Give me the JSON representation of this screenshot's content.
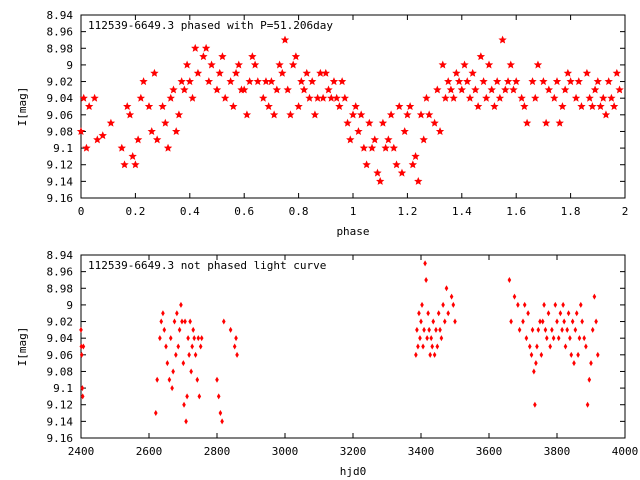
{
  "chart_data": [
    {
      "type": "scatter",
      "title": "112539-6649.3 phased with P=51.206day",
      "xlabel": "phase",
      "ylabel": "I[mag]",
      "xlim": [
        0,
        2
      ],
      "ylim": [
        9.16,
        8.94
      ],
      "y_inverted": true,
      "x_ticks": [
        "0",
        "0.2",
        "0.4",
        "0.6",
        "0.8",
        "1",
        "1.2",
        "1.4",
        "1.6",
        "1.8",
        "2"
      ],
      "y_ticks": [
        "8.94",
        "8.96",
        "8.98",
        "9",
        "9.02",
        "9.04",
        "9.06",
        "9.08",
        "9.1",
        "9.12",
        "9.14",
        "9.16"
      ],
      "marker": "star",
      "color": "#ff0000",
      "points": [
        [
          0.0,
          9.08
        ],
        [
          0.01,
          9.04
        ],
        [
          0.02,
          9.1
        ],
        [
          0.03,
          9.05
        ],
        [
          0.05,
          9.04
        ],
        [
          0.06,
          9.09
        ],
        [
          0.08,
          9.085
        ],
        [
          0.11,
          9.07
        ],
        [
          0.15,
          9.1
        ],
        [
          0.16,
          9.12
        ],
        [
          0.17,
          9.05
        ],
        [
          0.18,
          9.06
        ],
        [
          0.19,
          9.11
        ],
        [
          0.2,
          9.12
        ],
        [
          0.21,
          9.09
        ],
        [
          0.22,
          9.04
        ],
        [
          0.23,
          9.02
        ],
        [
          0.25,
          9.05
        ],
        [
          0.26,
          9.08
        ],
        [
          0.27,
          9.01
        ],
        [
          0.28,
          9.09
        ],
        [
          0.3,
          9.05
        ],
        [
          0.31,
          9.07
        ],
        [
          0.32,
          9.1
        ],
        [
          0.33,
          9.04
        ],
        [
          0.34,
          9.03
        ],
        [
          0.35,
          9.08
        ],
        [
          0.36,
          9.06
        ],
        [
          0.37,
          9.02
        ],
        [
          0.38,
          9.03
        ],
        [
          0.39,
          9.0
        ],
        [
          0.4,
          9.02
        ],
        [
          0.41,
          9.04
        ],
        [
          0.42,
          8.98
        ],
        [
          0.43,
          9.01
        ],
        [
          0.45,
          8.99
        ],
        [
          0.46,
          8.98
        ],
        [
          0.47,
          9.02
        ],
        [
          0.48,
          9.0
        ],
        [
          0.5,
          9.03
        ],
        [
          0.51,
          9.01
        ],
        [
          0.52,
          8.99
        ],
        [
          0.53,
          9.04
        ],
        [
          0.55,
          9.02
        ],
        [
          0.56,
          9.05
        ],
        [
          0.57,
          9.01
        ],
        [
          0.58,
          9.0
        ],
        [
          0.59,
          9.03
        ],
        [
          0.6,
          9.03
        ],
        [
          0.61,
          9.06
        ],
        [
          0.62,
          9.02
        ],
        [
          0.63,
          8.99
        ],
        [
          0.64,
          9.0
        ],
        [
          0.65,
          9.02
        ],
        [
          0.67,
          9.04
        ],
        [
          0.68,
          9.02
        ],
        [
          0.69,
          9.05
        ],
        [
          0.7,
          9.02
        ],
        [
          0.71,
          9.06
        ],
        [
          0.72,
          9.03
        ],
        [
          0.73,
          9.0
        ],
        [
          0.74,
          9.01
        ],
        [
          0.75,
          8.97
        ],
        [
          0.76,
          9.03
        ],
        [
          0.77,
          9.06
        ],
        [
          0.78,
          9.0
        ],
        [
          0.79,
          8.99
        ],
        [
          0.8,
          9.05
        ],
        [
          0.81,
          9.02
        ],
        [
          0.82,
          9.03
        ],
        [
          0.83,
          9.01
        ],
        [
          0.84,
          9.04
        ],
        [
          0.85,
          9.02
        ],
        [
          0.86,
          9.06
        ],
        [
          0.87,
          9.04
        ],
        [
          0.88,
          9.01
        ],
        [
          0.89,
          9.04
        ],
        [
          0.9,
          9.01
        ],
        [
          0.91,
          9.03
        ],
        [
          0.92,
          9.04
        ],
        [
          0.93,
          9.02
        ],
        [
          0.94,
          9.04
        ],
        [
          0.95,
          9.05
        ],
        [
          0.96,
          9.02
        ],
        [
          0.97,
          9.04
        ],
        [
          0.98,
          9.07
        ],
        [
          0.99,
          9.09
        ],
        [
          1.0,
          9.06
        ],
        [
          1.01,
          9.05
        ],
        [
          1.02,
          9.08
        ],
        [
          1.03,
          9.06
        ],
        [
          1.04,
          9.1
        ],
        [
          1.05,
          9.12
        ],
        [
          1.06,
          9.07
        ],
        [
          1.07,
          9.1
        ],
        [
          1.08,
          9.09
        ],
        [
          1.09,
          9.13
        ],
        [
          1.1,
          9.14
        ],
        [
          1.11,
          9.07
        ],
        [
          1.12,
          9.1
        ],
        [
          1.13,
          9.09
        ],
        [
          1.14,
          9.06
        ],
        [
          1.15,
          9.1
        ],
        [
          1.16,
          9.12
        ],
        [
          1.17,
          9.05
        ],
        [
          1.18,
          9.13
        ],
        [
          1.19,
          9.08
        ],
        [
          1.2,
          9.06
        ],
        [
          1.21,
          9.05
        ],
        [
          1.22,
          9.12
        ],
        [
          1.23,
          9.11
        ],
        [
          1.24,
          9.14
        ],
        [
          1.25,
          9.06
        ],
        [
          1.26,
          9.09
        ],
        [
          1.27,
          9.04
        ],
        [
          1.28,
          9.06
        ],
        [
          1.3,
          9.07
        ],
        [
          1.31,
          9.03
        ],
        [
          1.32,
          9.08
        ],
        [
          1.33,
          9.0
        ],
        [
          1.34,
          9.04
        ],
        [
          1.35,
          9.02
        ],
        [
          1.36,
          9.03
        ],
        [
          1.37,
          9.04
        ],
        [
          1.38,
          9.01
        ],
        [
          1.39,
          9.02
        ],
        [
          1.4,
          9.03
        ],
        [
          1.41,
          9.0
        ],
        [
          1.42,
          9.02
        ],
        [
          1.43,
          9.04
        ],
        [
          1.44,
          9.01
        ],
        [
          1.45,
          9.03
        ],
        [
          1.46,
          9.05
        ],
        [
          1.47,
          8.99
        ],
        [
          1.48,
          9.02
        ],
        [
          1.49,
          9.04
        ],
        [
          1.5,
          9.0
        ],
        [
          1.51,
          9.03
        ],
        [
          1.52,
          9.05
        ],
        [
          1.53,
          9.02
        ],
        [
          1.54,
          9.04
        ],
        [
          1.55,
          8.97
        ],
        [
          1.56,
          9.03
        ],
        [
          1.57,
          9.02
        ],
        [
          1.58,
          9.0
        ],
        [
          1.59,
          9.03
        ],
        [
          1.6,
          9.02
        ],
        [
          1.62,
          9.04
        ],
        [
          1.63,
          9.05
        ],
        [
          1.64,
          9.07
        ],
        [
          1.66,
          9.02
        ],
        [
          1.67,
          9.04
        ],
        [
          1.68,
          9.0
        ],
        [
          1.7,
          9.02
        ],
        [
          1.71,
          9.07
        ],
        [
          1.72,
          9.03
        ],
        [
          1.74,
          9.04
        ],
        [
          1.75,
          9.02
        ],
        [
          1.76,
          9.07
        ],
        [
          1.77,
          9.05
        ],
        [
          1.78,
          9.03
        ],
        [
          1.79,
          9.01
        ],
        [
          1.8,
          9.02
        ],
        [
          1.82,
          9.04
        ],
        [
          1.83,
          9.02
        ],
        [
          1.84,
          9.05
        ],
        [
          1.86,
          9.01
        ],
        [
          1.87,
          9.04
        ],
        [
          1.88,
          9.05
        ],
        [
          1.89,
          9.03
        ],
        [
          1.9,
          9.02
        ],
        [
          1.91,
          9.05
        ],
        [
          1.92,
          9.04
        ],
        [
          1.93,
          9.06
        ],
        [
          1.94,
          9.02
        ],
        [
          1.95,
          9.04
        ],
        [
          1.96,
          9.05
        ],
        [
          1.97,
          9.01
        ],
        [
          1.98,
          9.03
        ]
      ]
    },
    {
      "type": "scatter",
      "title": "112539-6649.3 not phased light curve",
      "xlabel": "hjd0",
      "ylabel": "I[mag]",
      "xlim": [
        2400,
        4000
      ],
      "ylim": [
        9.16,
        8.94
      ],
      "y_inverted": true,
      "x_ticks": [
        "2400",
        "2600",
        "2800",
        "3000",
        "3200",
        "3400",
        "3600",
        "3800",
        "4000"
      ],
      "y_ticks": [
        "8.94",
        "8.96",
        "8.98",
        "9",
        "9.02",
        "9.04",
        "9.06",
        "9.08",
        "9.1",
        "9.12",
        "9.14",
        "9.16"
      ],
      "marker": "diamond",
      "color": "#ff0000",
      "points": [
        [
          2400,
          9.03
        ],
        [
          2401,
          9.05
        ],
        [
          2402,
          9.06
        ],
        [
          2404,
          9.1
        ],
        [
          2405,
          9.11
        ],
        [
          2407,
          9.05
        ],
        [
          2620,
          9.13
        ],
        [
          2624,
          9.09
        ],
        [
          2632,
          9.04
        ],
        [
          2636,
          9.02
        ],
        [
          2641,
          9.01
        ],
        [
          2645,
          9.03
        ],
        [
          2650,
          9.05
        ],
        [
          2654,
          9.07
        ],
        [
          2660,
          9.09
        ],
        [
          2664,
          9.04
        ],
        [
          2668,
          9.1
        ],
        [
          2671,
          9.08
        ],
        [
          2675,
          9.02
        ],
        [
          2679,
          9.06
        ],
        [
          2682,
          9.01
        ],
        [
          2686,
          9.05
        ],
        [
          2690,
          9.03
        ],
        [
          2694,
          9.0
        ],
        [
          2697,
          9.02
        ],
        [
          2701,
          9.07
        ],
        [
          2703,
          9.12
        ],
        [
          2706,
          9.02
        ],
        [
          2709,
          9.14
        ],
        [
          2712,
          9.11
        ],
        [
          2715,
          9.04
        ],
        [
          2718,
          9.06
        ],
        [
          2721,
          9.02
        ],
        [
          2724,
          9.08
        ],
        [
          2727,
          9.05
        ],
        [
          2730,
          9.03
        ],
        [
          2733,
          9.04
        ],
        [
          2737,
          9.06
        ],
        [
          2742,
          9.09
        ],
        [
          2745,
          9.04
        ],
        [
          2748,
          9.11
        ],
        [
          2752,
          9.05
        ],
        [
          2755,
          9.04
        ],
        [
          2800,
          9.09
        ],
        [
          2805,
          9.11
        ],
        [
          2810,
          9.13
        ],
        [
          2815,
          9.14
        ],
        [
          2820,
          9.02
        ],
        [
          2840,
          9.03
        ],
        [
          2852,
          9.05
        ],
        [
          2856,
          9.04
        ],
        [
          2859,
          9.06
        ],
        [
          3385,
          9.06
        ],
        [
          3388,
          9.03
        ],
        [
          3391,
          9.05
        ],
        [
          3394,
          9.01
        ],
        [
          3397,
          9.04
        ],
        [
          3400,
          9.02
        ],
        [
          3403,
          9.0
        ],
        [
          3406,
          9.05
        ],
        [
          3409,
          9.03
        ],
        [
          3412,
          8.95
        ],
        [
          3415,
          8.97
        ],
        [
          3418,
          9.04
        ],
        [
          3421,
          9.01
        ],
        [
          3424,
          9.03
        ],
        [
          3427,
          9.06
        ],
        [
          3430,
          9.04
        ],
        [
          3433,
          9.05
        ],
        [
          3436,
          9.02
        ],
        [
          3440,
          9.06
        ],
        [
          3444,
          9.03
        ],
        [
          3448,
          9.05
        ],
        [
          3452,
          9.01
        ],
        [
          3456,
          9.03
        ],
        [
          3460,
          9.04
        ],
        [
          3465,
          9.0
        ],
        [
          3470,
          9.02
        ],
        [
          3475,
          8.98
        ],
        [
          3480,
          9.01
        ],
        [
          3490,
          8.99
        ],
        [
          3495,
          9.0
        ],
        [
          3500,
          9.02
        ],
        [
          3660,
          8.97
        ],
        [
          3665,
          9.02
        ],
        [
          3675,
          8.99
        ],
        [
          3685,
          9.0
        ],
        [
          3690,
          9.03
        ],
        [
          3700,
          9.02
        ],
        [
          3705,
          9.0
        ],
        [
          3710,
          9.04
        ],
        [
          3715,
          9.01
        ],
        [
          3720,
          9.05
        ],
        [
          3725,
          9.06
        ],
        [
          3728,
          9.03
        ],
        [
          3732,
          9.08
        ],
        [
          3735,
          9.12
        ],
        [
          3738,
          9.07
        ],
        [
          3741,
          9.05
        ],
        [
          3745,
          9.03
        ],
        [
          3750,
          9.02
        ],
        [
          3754,
          9.06
        ],
        [
          3758,
          9.02
        ],
        [
          3762,
          9.0
        ],
        [
          3766,
          9.03
        ],
        [
          3770,
          9.04
        ],
        [
          3775,
          9.01
        ],
        [
          3780,
          9.05
        ],
        [
          3785,
          9.03
        ],
        [
          3790,
          9.04
        ],
        [
          3795,
          9.0
        ],
        [
          3800,
          9.02
        ],
        [
          3805,
          9.04
        ],
        [
          3810,
          9.01
        ],
        [
          3815,
          9.03
        ],
        [
          3818,
          9.0
        ],
        [
          3821,
          9.02
        ],
        [
          3825,
          9.05
        ],
        [
          3830,
          9.03
        ],
        [
          3834,
          9.01
        ],
        [
          3838,
          9.04
        ],
        [
          3842,
          9.06
        ],
        [
          3846,
          9.02
        ],
        [
          3850,
          9.07
        ],
        [
          3854,
          9.03
        ],
        [
          3858,
          9.01
        ],
        [
          3862,
          9.06
        ],
        [
          3866,
          9.04
        ],
        [
          3870,
          9.0
        ],
        [
          3874,
          9.02
        ],
        [
          3880,
          9.04
        ],
        [
          3885,
          9.05
        ],
        [
          3890,
          9.12
        ],
        [
          3895,
          9.09
        ],
        [
          3900,
          9.07
        ],
        [
          3905,
          9.03
        ],
        [
          3910,
          8.99
        ],
        [
          3915,
          9.02
        ],
        [
          3920,
          9.06
        ]
      ]
    }
  ]
}
